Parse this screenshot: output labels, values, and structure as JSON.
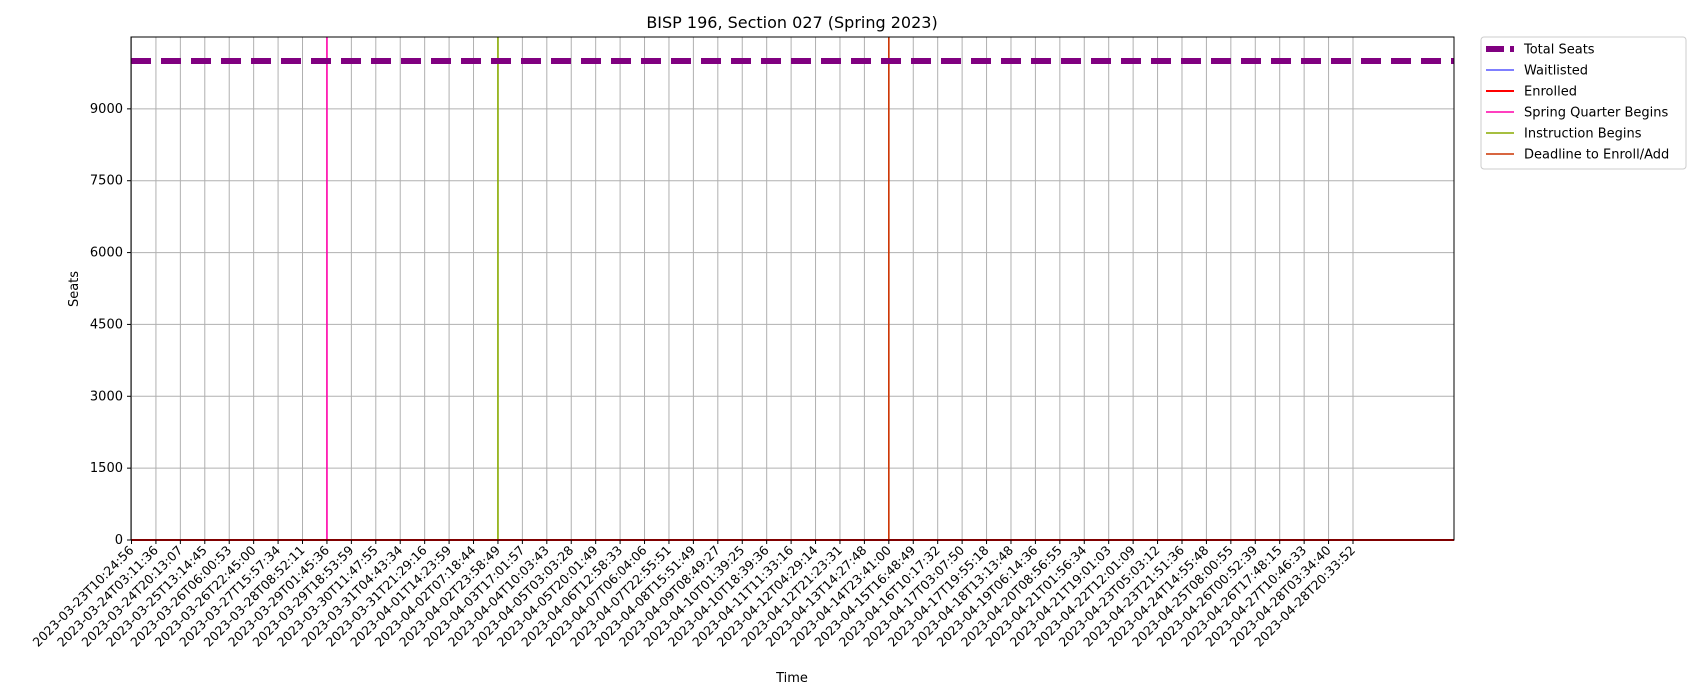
{
  "chart_data": {
    "type": "line",
    "title": "BISP 196, Section 027 (Spring 2023)",
    "xlabel": "Time",
    "ylabel": "Seats",
    "ylim": [
      0,
      10500
    ],
    "yticks": [
      0,
      1500,
      3000,
      4500,
      6000,
      7500,
      9000
    ],
    "grid": true,
    "legend_position": "outside-top-right",
    "x_ticks": [
      "2023-03-23T10:24:56",
      "2023-03-24T03:11:36",
      "2023-03-24T20:13:07",
      "2023-03-25T13:14:45",
      "2023-03-26T06:00:53",
      "2023-03-26T22:45:00",
      "2023-03-27T15:57:34",
      "2023-03-28T08:52:11",
      "2023-03-29T01:45:36",
      "2023-03-29T18:53:59",
      "2023-03-30T11:47:55",
      "2023-03-31T04:43:34",
      "2023-03-31T21:29:16",
      "2023-04-01T14:23:59",
      "2023-04-02T07:18:44",
      "2023-04-02T23:58:49",
      "2023-04-03T17:01:57",
      "2023-04-04T10:03:43",
      "2023-04-05T03:03:28",
      "2023-04-05T20:01:49",
      "2023-04-06T12:58:33",
      "2023-04-07T06:04:06",
      "2023-04-07T22:55:51",
      "2023-04-08T15:51:49",
      "2023-04-09T08:49:27",
      "2023-04-10T01:39:25",
      "2023-04-10T18:39:36",
      "2023-04-11T11:33:16",
      "2023-04-12T04:29:14",
      "2023-04-12T21:23:31",
      "2023-04-13T14:27:48",
      "2023-04-14T23:41:00",
      "2023-04-15T16:48:49",
      "2023-04-16T10:17:32",
      "2023-04-17T03:07:50",
      "2023-04-17T19:55:18",
      "2023-04-18T13:13:48",
      "2023-04-19T06:14:36",
      "2023-04-20T08:56:55",
      "2023-04-21T01:56:34",
      "2023-04-21T19:01:03",
      "2023-04-22T12:01:09",
      "2023-04-23T05:03:12",
      "2023-04-23T21:51:36",
      "2023-04-24T14:55:48",
      "2023-04-25T08:00:55",
      "2023-04-26T00:52:39",
      "2023-04-26T17:48:15",
      "2023-04-27T10:46:33",
      "2023-04-28T03:34:40",
      "2023-04-28T20:33:52"
    ],
    "series": [
      {
        "name": "Total Seats",
        "value": 10000,
        "color": "#800080",
        "style": "dashed-thick"
      },
      {
        "name": "Waitlisted",
        "value": 0,
        "color": "#3333ff",
        "style": "solid-thin"
      },
      {
        "name": "Enrolled",
        "value": 0,
        "color": "#ff0000",
        "style": "solid"
      }
    ],
    "events": [
      {
        "name": "Spring Quarter Begins",
        "x": "2023-03-29T01:45:36",
        "color": "#ff00aa"
      },
      {
        "name": "Instruction Begins",
        "x": "2023-04-02T23:58:49",
        "color": "#88aa00"
      },
      {
        "name": "Deadline to Enroll/Add",
        "x": "2023-04-14T23:41:00",
        "color": "#cc3300"
      }
    ]
  }
}
